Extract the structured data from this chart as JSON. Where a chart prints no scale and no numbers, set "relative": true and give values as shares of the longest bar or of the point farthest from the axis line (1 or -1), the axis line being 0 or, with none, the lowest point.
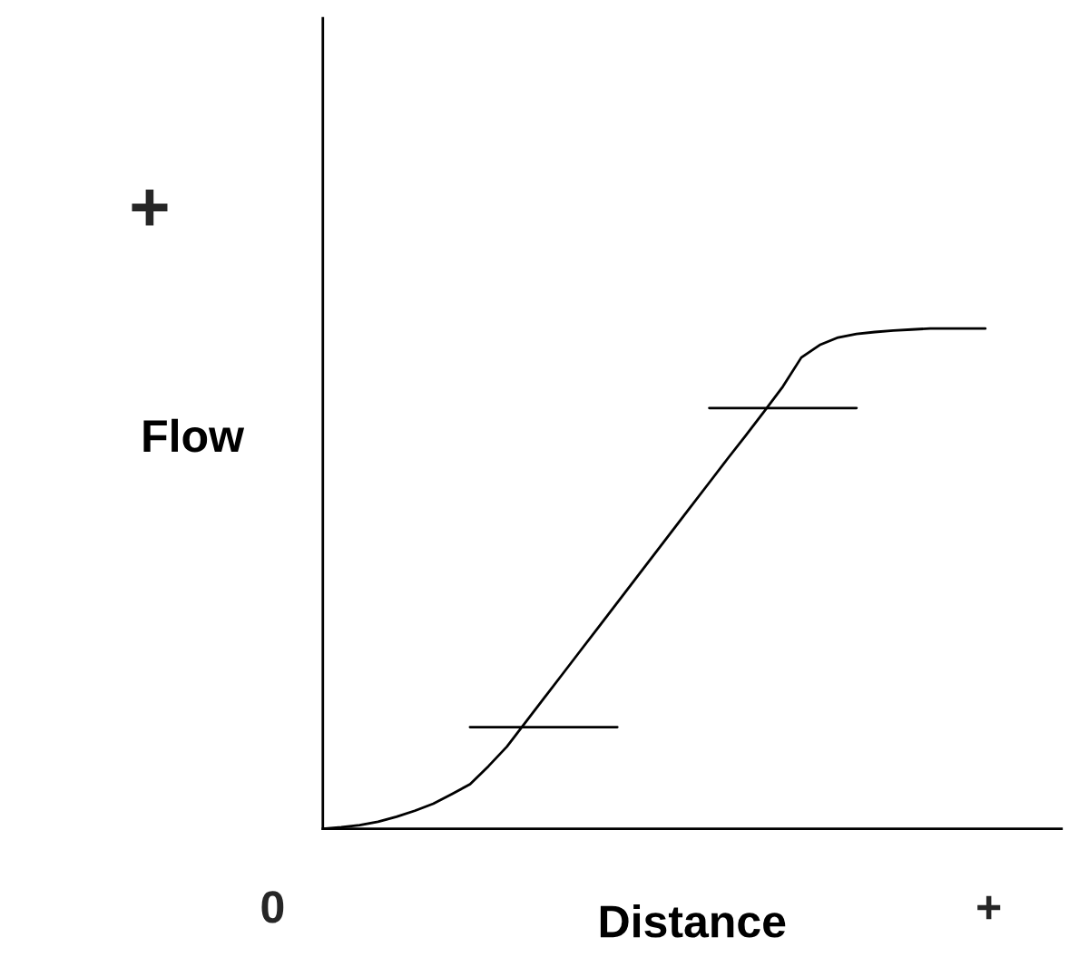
{
  "chart_data": {
    "type": "line",
    "relative": true,
    "xlabel": "Distance",
    "ylabel": "Flow",
    "legend": false,
    "marker": "none",
    "line_style": "solid",
    "annotations": [
      "+",
      "0",
      "+"
    ],
    "categories": [
      null,
      null,
      null,
      null,
      null,
      null,
      null,
      null,
      null,
      null,
      null,
      null,
      null,
      null,
      null,
      null,
      null,
      null,
      null,
      null,
      null,
      null,
      null,
      null,
      null,
      null,
      null,
      null,
      null,
      null,
      null,
      null,
      null,
      null,
      null,
      null,
      null
    ],
    "series": [
      {
        "color": "#000000",
        "values": [
          0,
          0.003,
          0.007,
          0.014,
          0.024,
          0.036,
          0.05,
          0.069,
          0.089,
          0.125,
          0.164,
          0.212,
          0.26,
          0.308,
          0.356,
          0.404,
          0.452,
          0.5,
          0.548,
          0.596,
          0.644,
          0.692,
          0.74,
          0.787,
          0.835,
          0.884,
          0.942,
          0.967,
          0.982,
          0.989,
          0.993,
          0.996,
          0.998,
          1,
          1,
          1,
          1
        ]
      },
      {
        "color": "#000000",
        "values": [
          null,
          null,
          null,
          null,
          null,
          null,
          null,
          null,
          0.203,
          0.203,
          0.203,
          0.203,
          0.203,
          0.203,
          0.203,
          0.203,
          0.203,
          null,
          null,
          null,
          null,
          null,
          null,
          null,
          null,
          null,
          null,
          null,
          null,
          null,
          null,
          null,
          null,
          null,
          null,
          null,
          null
        ]
      },
      {
        "color": "#000000",
        "values": [
          null,
          null,
          null,
          null,
          null,
          null,
          null,
          null,
          null,
          null,
          null,
          null,
          null,
          null,
          null,
          null,
          null,
          null,
          null,
          null,
          null,
          0.841,
          0.841,
          0.841,
          0.841,
          0.841,
          0.841,
          0.841,
          0.841,
          0.841,
          null,
          null,
          null,
          null,
          null,
          null,
          null
        ]
      }
    ]
  }
}
